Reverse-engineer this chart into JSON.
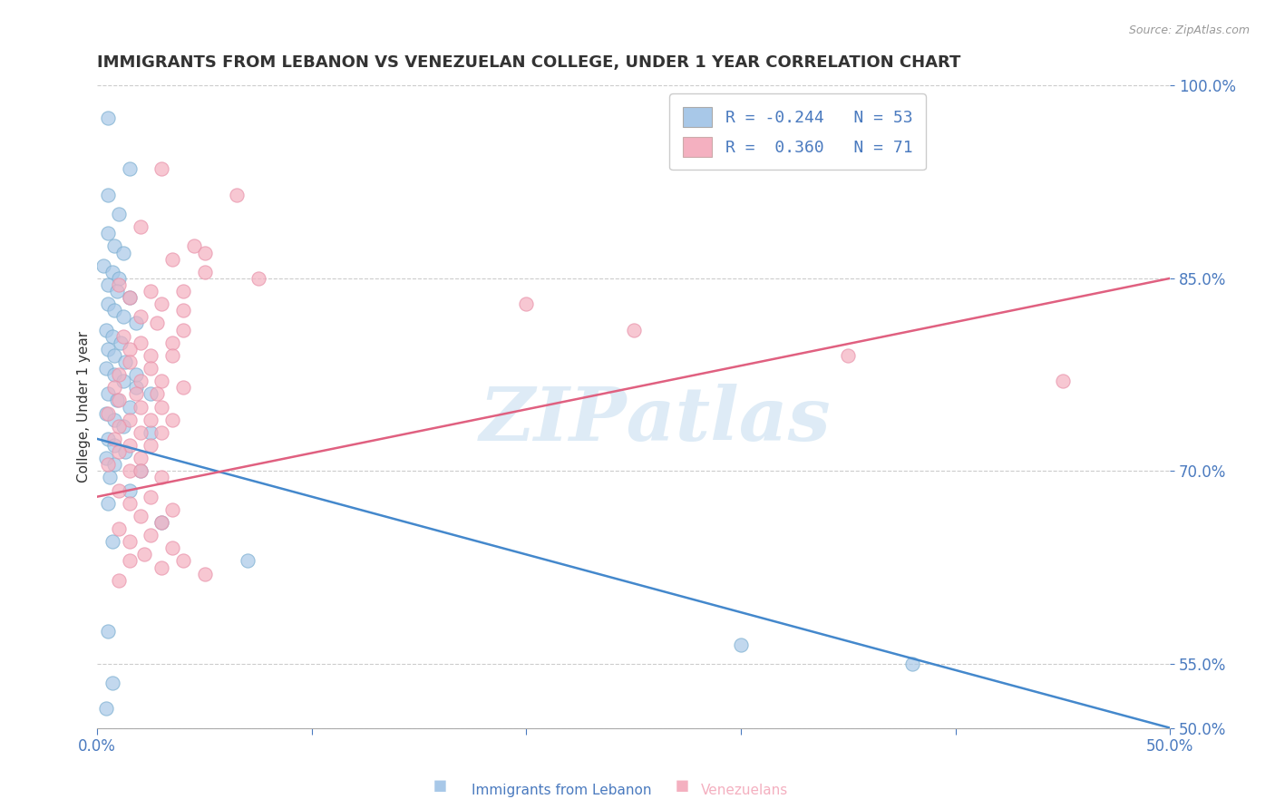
{
  "title": "IMMIGRANTS FROM LEBANON VS VENEZUELAN COLLEGE, UNDER 1 YEAR CORRELATION CHART",
  "source": "Source: ZipAtlas.com",
  "ylabel": "College, Under 1 year",
  "x_tick_labels": [
    "0.0%",
    "",
    "",
    "",
    "",
    "50.0%"
  ],
  "y_tick_labels": [
    "50.0%",
    "55.0%",
    "70.0%",
    "85.0%",
    "100.0%"
  ],
  "x_ticks": [
    0.0,
    10.0,
    20.0,
    30.0,
    40.0,
    50.0
  ],
  "y_ticks": [
    50.0,
    55.0,
    70.0,
    85.0,
    100.0
  ],
  "xlim": [
    0.0,
    50.0
  ],
  "ylim": [
    50.0,
    100.0
  ],
  "legend_label1": "Immigrants from Lebanon",
  "legend_label2": "Venezuelans",
  "legend_R1": "R = -0.244",
  "legend_N1": "N = 53",
  "legend_R2": "R =  0.360",
  "legend_N2": "N = 71",
  "blue_color": "#a8c8e8",
  "pink_color": "#f4b0c0",
  "blue_edge_color": "#7aaed0",
  "pink_edge_color": "#e890a8",
  "blue_line_color": "#4488cc",
  "pink_line_color": "#e06080",
  "grid_color": "#cccccc",
  "bg_color": "#ffffff",
  "title_color": "#333333",
  "tick_label_color": "#4a7abf",
  "blue_scatter": [
    [
      0.5,
      97.5
    ],
    [
      1.5,
      93.5
    ],
    [
      0.5,
      91.5
    ],
    [
      1.0,
      90.0
    ],
    [
      0.5,
      88.5
    ],
    [
      0.8,
      87.5
    ],
    [
      1.2,
      87.0
    ],
    [
      0.3,
      86.0
    ],
    [
      0.7,
      85.5
    ],
    [
      1.0,
      85.0
    ],
    [
      0.5,
      84.5
    ],
    [
      0.9,
      84.0
    ],
    [
      1.5,
      83.5
    ],
    [
      0.5,
      83.0
    ],
    [
      0.8,
      82.5
    ],
    [
      1.2,
      82.0
    ],
    [
      1.8,
      81.5
    ],
    [
      0.4,
      81.0
    ],
    [
      0.7,
      80.5
    ],
    [
      1.1,
      80.0
    ],
    [
      0.5,
      79.5
    ],
    [
      0.8,
      79.0
    ],
    [
      1.3,
      78.5
    ],
    [
      0.4,
      78.0
    ],
    [
      0.8,
      77.5
    ],
    [
      1.2,
      77.0
    ],
    [
      1.8,
      76.5
    ],
    [
      0.5,
      76.0
    ],
    [
      0.9,
      75.5
    ],
    [
      1.5,
      75.0
    ],
    [
      0.4,
      74.5
    ],
    [
      0.8,
      74.0
    ],
    [
      1.2,
      73.5
    ],
    [
      2.5,
      73.0
    ],
    [
      0.5,
      72.5
    ],
    [
      0.8,
      72.0
    ],
    [
      1.3,
      71.5
    ],
    [
      0.4,
      71.0
    ],
    [
      0.8,
      70.5
    ],
    [
      2.0,
      70.0
    ],
    [
      0.6,
      69.5
    ],
    [
      1.5,
      68.5
    ],
    [
      0.5,
      67.5
    ],
    [
      3.0,
      66.0
    ],
    [
      0.7,
      64.5
    ],
    [
      7.0,
      63.0
    ],
    [
      0.5,
      57.5
    ],
    [
      0.7,
      53.5
    ],
    [
      0.4,
      51.5
    ],
    [
      1.8,
      77.5
    ],
    [
      2.5,
      76.0
    ],
    [
      30.0,
      56.5
    ],
    [
      38.0,
      55.0
    ]
  ],
  "pink_scatter": [
    [
      3.0,
      93.5
    ],
    [
      6.5,
      91.5
    ],
    [
      2.0,
      89.0
    ],
    [
      4.5,
      87.5
    ],
    [
      5.0,
      87.0
    ],
    [
      3.5,
      86.5
    ],
    [
      5.0,
      85.5
    ],
    [
      7.5,
      85.0
    ],
    [
      1.0,
      84.5
    ],
    [
      2.5,
      84.0
    ],
    [
      4.0,
      84.0
    ],
    [
      1.5,
      83.5
    ],
    [
      3.0,
      83.0
    ],
    [
      4.0,
      82.5
    ],
    [
      2.0,
      82.0
    ],
    [
      2.8,
      81.5
    ],
    [
      4.0,
      81.0
    ],
    [
      1.2,
      80.5
    ],
    [
      2.0,
      80.0
    ],
    [
      3.5,
      80.0
    ],
    [
      1.5,
      79.5
    ],
    [
      2.5,
      79.0
    ],
    [
      3.5,
      79.0
    ],
    [
      1.5,
      78.5
    ],
    [
      2.5,
      78.0
    ],
    [
      1.0,
      77.5
    ],
    [
      2.0,
      77.0
    ],
    [
      3.0,
      77.0
    ],
    [
      4.0,
      76.5
    ],
    [
      0.8,
      76.5
    ],
    [
      1.8,
      76.0
    ],
    [
      2.8,
      76.0
    ],
    [
      1.0,
      75.5
    ],
    [
      2.0,
      75.0
    ],
    [
      3.0,
      75.0
    ],
    [
      0.5,
      74.5
    ],
    [
      1.5,
      74.0
    ],
    [
      2.5,
      74.0
    ],
    [
      3.5,
      74.0
    ],
    [
      1.0,
      73.5
    ],
    [
      2.0,
      73.0
    ],
    [
      3.0,
      73.0
    ],
    [
      0.8,
      72.5
    ],
    [
      1.5,
      72.0
    ],
    [
      2.5,
      72.0
    ],
    [
      1.0,
      71.5
    ],
    [
      2.0,
      71.0
    ],
    [
      0.5,
      70.5
    ],
    [
      1.5,
      70.0
    ],
    [
      2.0,
      70.0
    ],
    [
      3.0,
      69.5
    ],
    [
      1.0,
      68.5
    ],
    [
      2.5,
      68.0
    ],
    [
      1.5,
      67.5
    ],
    [
      3.5,
      67.0
    ],
    [
      2.0,
      66.5
    ],
    [
      3.0,
      66.0
    ],
    [
      1.0,
      65.5
    ],
    [
      2.5,
      65.0
    ],
    [
      1.5,
      64.5
    ],
    [
      3.5,
      64.0
    ],
    [
      2.2,
      63.5
    ],
    [
      4.0,
      63.0
    ],
    [
      1.5,
      63.0
    ],
    [
      3.0,
      62.5
    ],
    [
      5.0,
      62.0
    ],
    [
      1.0,
      61.5
    ],
    [
      20.0,
      83.0
    ],
    [
      25.0,
      81.0
    ],
    [
      35.0,
      79.0
    ],
    [
      45.0,
      77.0
    ]
  ]
}
